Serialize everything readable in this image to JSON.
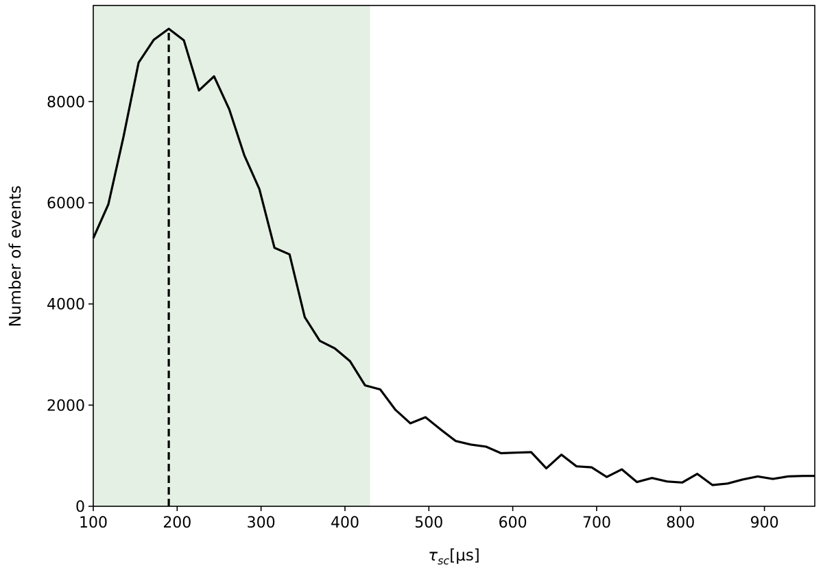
{
  "chart_data": {
    "type": "line",
    "title": "",
    "xlabel": "τ",
    "xlabel_sub": "sc",
    "xlabel_unit": "[μs]",
    "ylabel": "Number of events",
    "xlim": [
      100,
      960
    ],
    "ylim": [
      0,
      9900
    ],
    "x_ticks": [
      100,
      200,
      300,
      400,
      500,
      600,
      700,
      800,
      900
    ],
    "y_ticks": [
      0,
      2000,
      4000,
      6000,
      8000
    ],
    "x_tick_labels": [
      "100",
      "200",
      "300",
      "400",
      "500",
      "600",
      "700",
      "800",
      "900"
    ],
    "y_tick_labels": [
      "0",
      "2000",
      "4000",
      "6000",
      "8000"
    ],
    "grid": false,
    "shaded_region": {
      "x_start": 100,
      "x_end": 430,
      "color": "#e3f0e3"
    },
    "peak_line": {
      "x": 190,
      "style": "dashed",
      "color": "#000000"
    },
    "line_color": "#000000",
    "series": [
      {
        "x": [
          100,
          118,
          136,
          154,
          172,
          190,
          208,
          226,
          244,
          262,
          280,
          298,
          316,
          334,
          352,
          370,
          388,
          406,
          424,
          442,
          460,
          478,
          496,
          514,
          532,
          550,
          568,
          586,
          604,
          622,
          640,
          658,
          676,
          694,
          712,
          730,
          748,
          766,
          784,
          802,
          820,
          838,
          856,
          874,
          892,
          910,
          928,
          946,
          960
        ],
        "values": [
          5300,
          5970,
          7300,
          8770,
          9220,
          9440,
          9210,
          8220,
          8500,
          7850,
          6940,
          6270,
          5110,
          4980,
          3740,
          3270,
          3120,
          2870,
          2390,
          2310,
          1910,
          1640,
          1760,
          1520,
          1290,
          1220,
          1180,
          1050,
          1060,
          1070,
          750,
          1020,
          790,
          770,
          580,
          730,
          480,
          560,
          490,
          470,
          640,
          420,
          450,
          530,
          590,
          540,
          590,
          600,
          600
        ]
      }
    ]
  }
}
